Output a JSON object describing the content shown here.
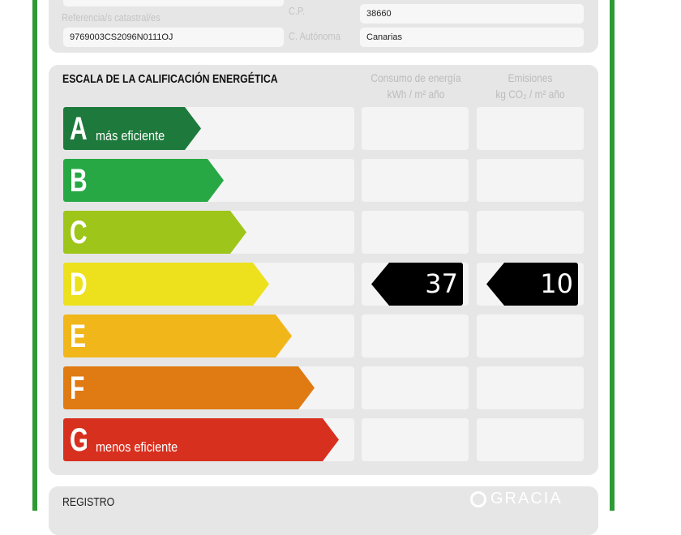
{
  "property": {
    "ref_label": "Referencia/s catastral/es",
    "ref_value": "9769003CS2096N0111OJ",
    "cp_label": "C.P.",
    "cp_value": "38660",
    "ca_label": "C. Autónoma",
    "ca_value": "Canarias"
  },
  "scale": {
    "title": "ESCALA DE LA CALIFICACIÓN ENERGÉTICA",
    "col_energy": "Consumo de energía",
    "col_energy_unit": "kWh / m² año",
    "col_emissions": "Emisiones",
    "col_emissions_unit": "kg CO₂ / m² año",
    "ratings": [
      {
        "letter": "A",
        "sub": "más eficiente",
        "color": "#1e7a3c"
      },
      {
        "letter": "B",
        "sub": "",
        "color": "#27a845"
      },
      {
        "letter": "C",
        "sub": "",
        "color": "#9ec51a"
      },
      {
        "letter": "D",
        "sub": "",
        "color": "#ece11c"
      },
      {
        "letter": "E",
        "sub": "",
        "color": "#f1b619"
      },
      {
        "letter": "F",
        "sub": "",
        "color": "#e07a12"
      },
      {
        "letter": "G",
        "sub": "menos eficiente",
        "color": "#d8301f"
      }
    ],
    "energy_rating": "D",
    "energy_value": "37",
    "emissions_rating": "D",
    "emissions_value": "10"
  },
  "watermark": "GRACIA",
  "registro": {
    "title": "REGISTRO"
  }
}
